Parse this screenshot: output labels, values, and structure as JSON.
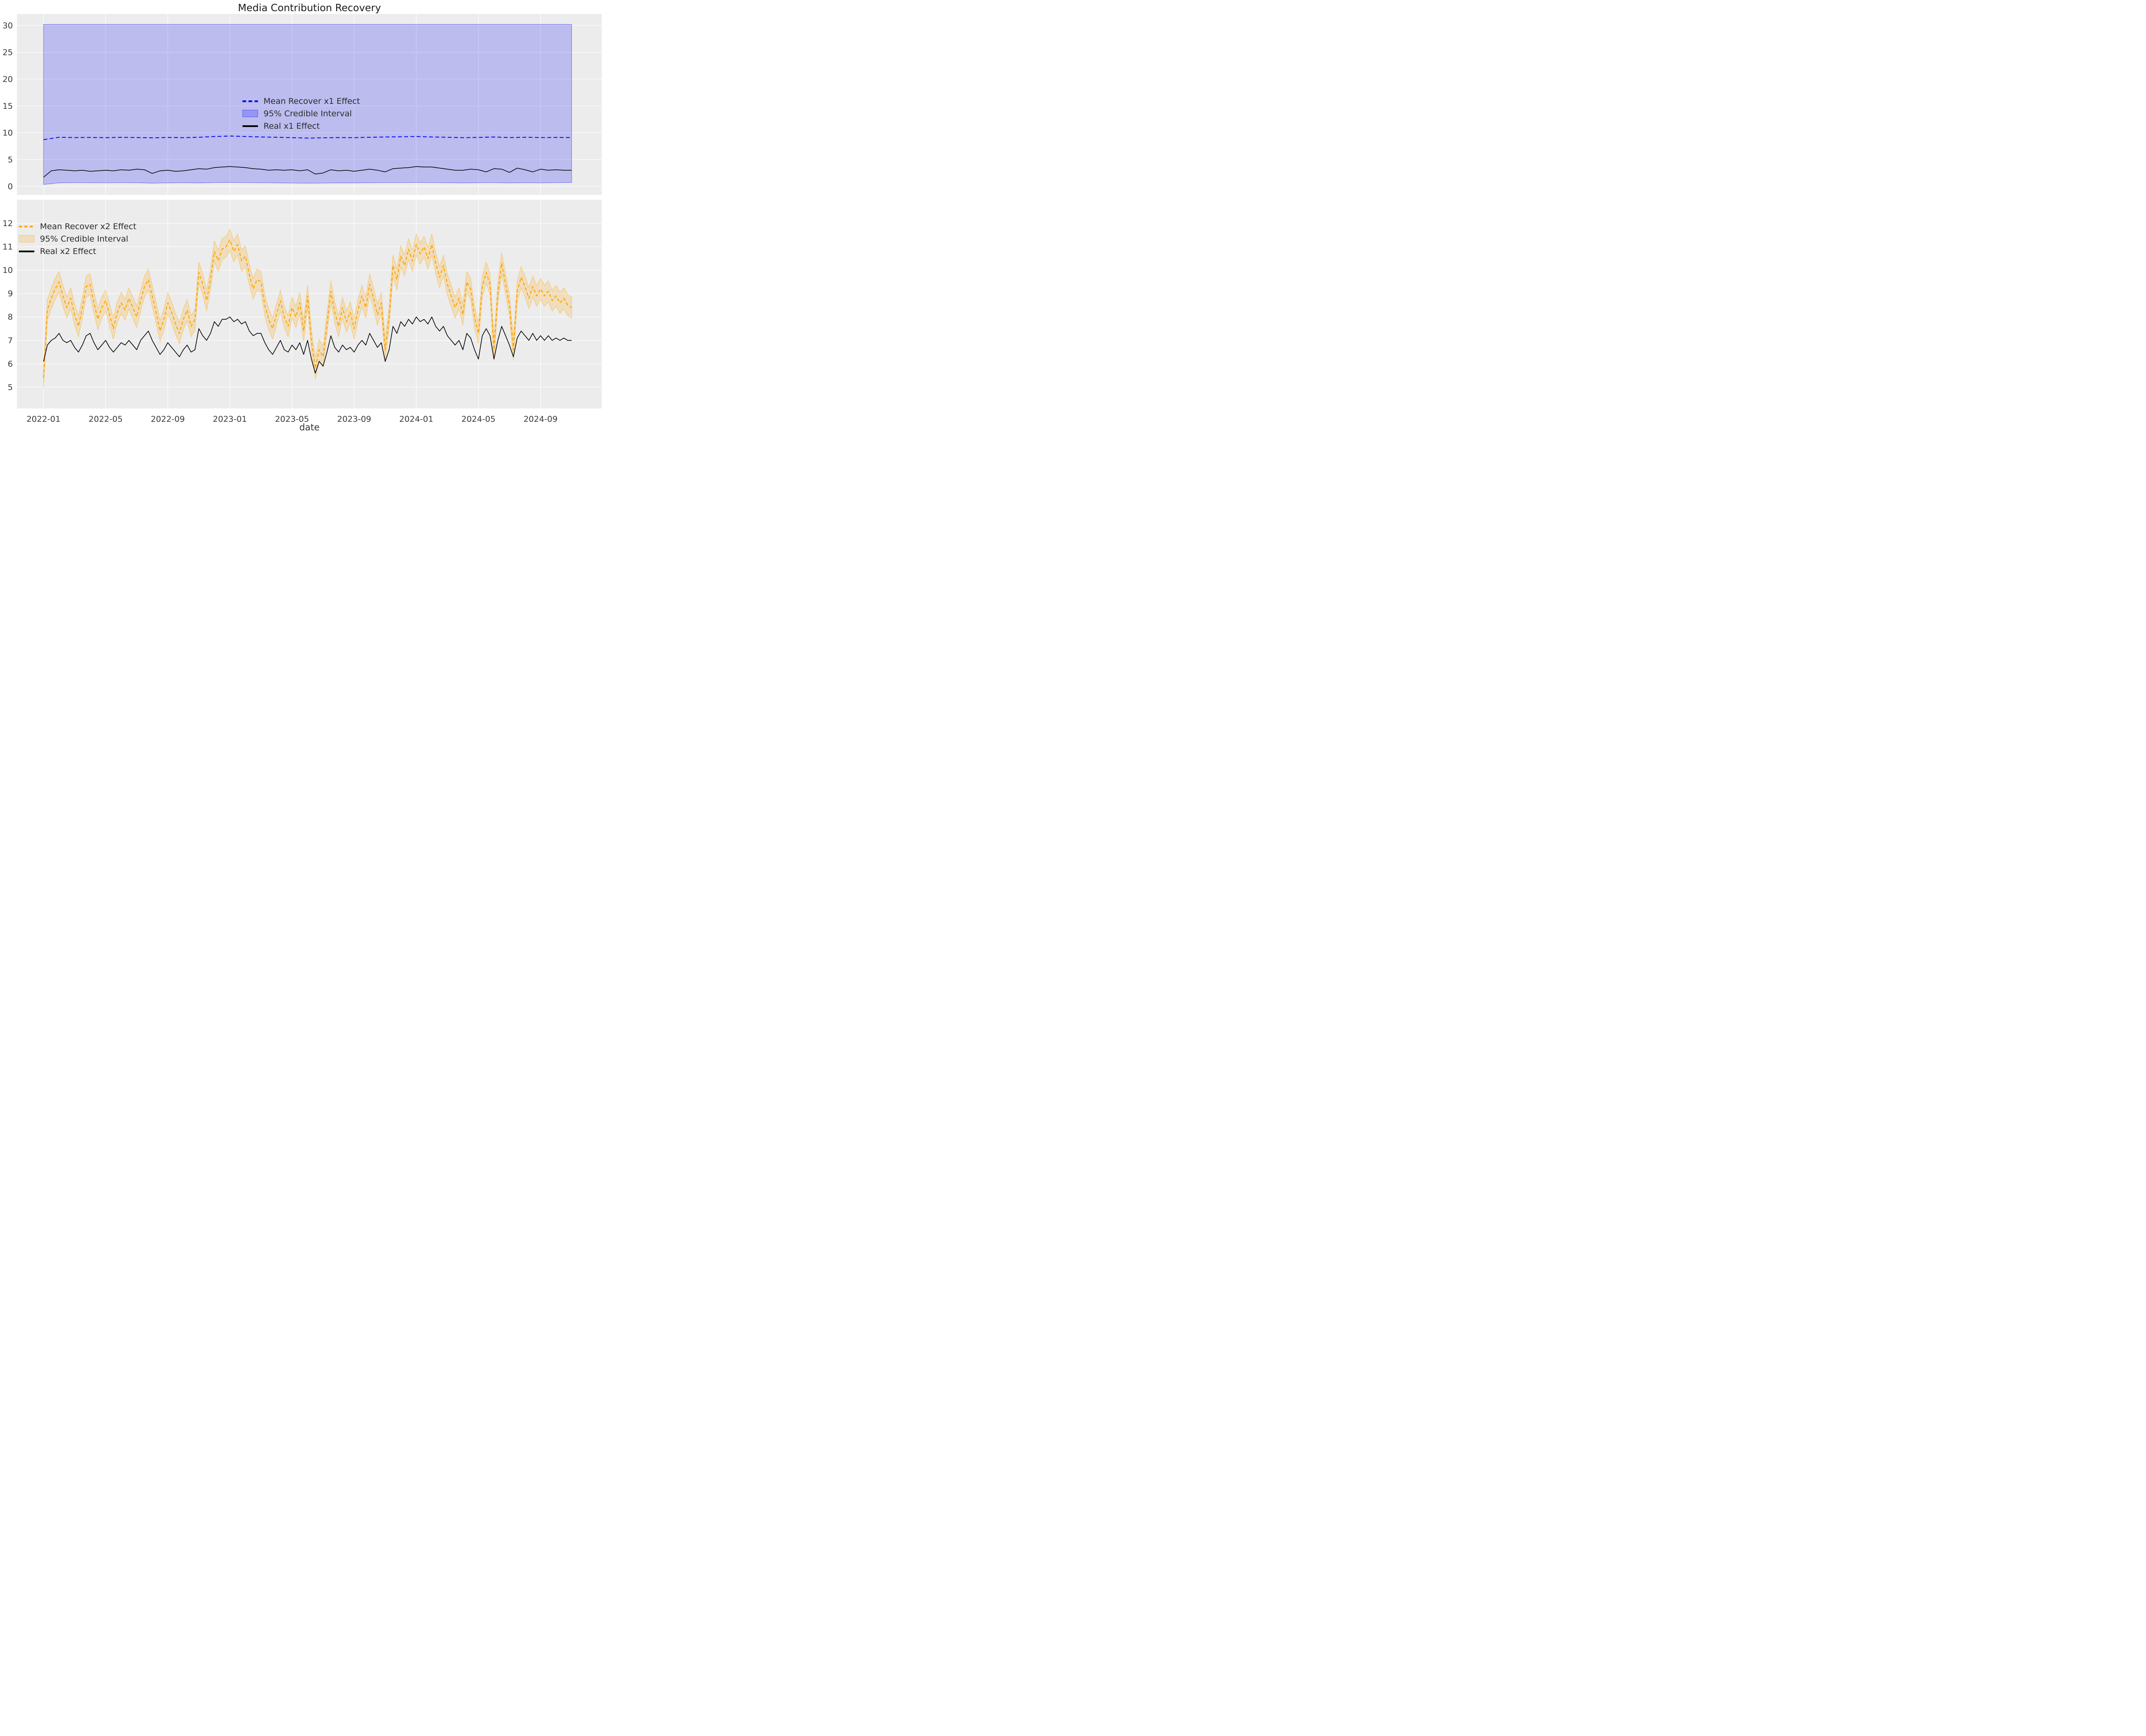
{
  "figure": {
    "background_color": "#ffffff",
    "axes_background_color": "#ececec",
    "grid_color": "#ffffff",
    "tick_label_color": "#3a3a3a",
    "title_color": "#1a1a1a"
  },
  "chart_data": {
    "type": "line",
    "title": "Media Contribution Recovery",
    "xlabel": "date",
    "x_axis": {
      "unit": "months since 2022-01",
      "tick_labels": [
        "2022-01",
        "2022-05",
        "2022-09",
        "2023-01",
        "2023-05",
        "2023-09",
        "2024-01",
        "2024-05",
        "2024-09"
      ],
      "tick_months": [
        0,
        4,
        8,
        12,
        16,
        20,
        24,
        28,
        32
      ],
      "data_start_month": 0,
      "data_end_month": 34,
      "xlim_months": [
        -1.71,
        35.94
      ]
    },
    "grid": true,
    "subplots": [
      {
        "name": "x1",
        "ylim": [
          -1.6,
          32.15
        ],
        "yticks": [
          0,
          5,
          10,
          15,
          20,
          25,
          30
        ],
        "legend_position": "center",
        "legend_items": [
          {
            "label": "Mean Recover x1 Effect",
            "swatch": "dashed-line"
          },
          {
            "label": "95% Credible Interval",
            "swatch": "patch"
          },
          {
            "label": "Real x1 Effect",
            "swatch": "solid-line"
          }
        ],
        "colors": {
          "mean": "#0000ff",
          "band_fill": "rgba(0,0,255,0.2)",
          "band_edge": "rgba(0,0,255,0.4)",
          "real": "#000000"
        },
        "ci_high_const": 30.2,
        "ci_low": {
          "x_start": 0,
          "x_step_months": 1,
          "values": [
            0.35,
            0.65,
            0.7,
            0.68,
            0.66,
            0.7,
            0.68,
            0.6,
            0.65,
            0.68,
            0.65,
            0.7,
            0.72,
            0.7,
            0.68,
            0.65,
            0.62,
            0.6,
            0.62,
            0.65,
            0.65,
            0.68,
            0.7,
            0.7,
            0.72,
            0.7,
            0.68,
            0.65,
            0.68,
            0.7,
            0.65,
            0.68,
            0.66,
            0.7,
            0.72
          ]
        },
        "mean": {
          "x_start": 0,
          "x_step_months": 1,
          "values": [
            8.7,
            9.15,
            9.1,
            9.12,
            9.08,
            9.14,
            9.1,
            9.05,
            9.12,
            9.08,
            9.15,
            9.3,
            9.38,
            9.3,
            9.2,
            9.15,
            9.08,
            9.0,
            9.05,
            9.1,
            9.08,
            9.15,
            9.2,
            9.25,
            9.3,
            9.2,
            9.15,
            9.08,
            9.12,
            9.2,
            9.1,
            9.15,
            9.1,
            9.12,
            9.1
          ]
        },
        "real": {
          "x_start": 0,
          "x_step_months": 0.5,
          "values": [
            1.7,
            2.9,
            3.1,
            3.0,
            2.9,
            3.0,
            2.8,
            2.9,
            3.0,
            2.9,
            3.1,
            3.0,
            3.2,
            3.1,
            2.4,
            2.9,
            3.0,
            2.8,
            2.9,
            3.1,
            3.3,
            3.2,
            3.5,
            3.6,
            3.7,
            3.6,
            3.5,
            3.3,
            3.2,
            3.0,
            3.1,
            3.0,
            3.1,
            2.9,
            3.1,
            2.3,
            2.5,
            3.1,
            2.9,
            3.0,
            2.8,
            3.0,
            3.2,
            3.0,
            2.7,
            3.3,
            3.4,
            3.5,
            3.7,
            3.6,
            3.6,
            3.4,
            3.2,
            3.0,
            3.0,
            3.2,
            3.1,
            2.7,
            3.3,
            3.2,
            2.6,
            3.4,
            3.1,
            2.7,
            3.2,
            3.0,
            3.1,
            3.0,
            3.0
          ]
        }
      },
      {
        "name": "x2",
        "ylim": [
          4.09,
          13.01
        ],
        "yticks": [
          5,
          6,
          7,
          8,
          9,
          10,
          11,
          12
        ],
        "legend_position": "upper left",
        "legend_items": [
          {
            "label": "Mean Recover x2 Effect",
            "swatch": "dashed-line"
          },
          {
            "label": "95% Credible Interval",
            "swatch": "patch"
          },
          {
            "label": "Real x2 Effect",
            "swatch": "solid-line"
          }
        ],
        "colors": {
          "mean": "#ffa500",
          "band_fill": "rgba(255,165,0,0.2)",
          "band_edge": "rgba(255,165,0,0.4)",
          "real": "#000000"
        },
        "ci_half_width": 0.45,
        "mean": {
          "x_start": 0,
          "x_step_months": 0.25,
          "values": [
            5.4,
            8.3,
            8.8,
            9.2,
            9.5,
            8.9,
            8.4,
            8.8,
            8.1,
            7.6,
            8.4,
            9.3,
            9.4,
            8.6,
            7.9,
            8.4,
            8.7,
            8.1,
            7.5,
            8.2,
            8.6,
            8.3,
            8.8,
            8.4,
            8.0,
            8.7,
            9.3,
            9.6,
            8.9,
            8.2,
            7.4,
            7.9,
            8.6,
            8.2,
            7.7,
            7.3,
            7.9,
            8.3,
            7.6,
            7.9,
            9.9,
            9.4,
            8.7,
            9.6,
            10.8,
            10.4,
            10.9,
            11.0,
            11.3,
            10.8,
            11.1,
            10.4,
            10.6,
            9.8,
            9.2,
            9.6,
            9.5,
            8.5,
            7.9,
            7.5,
            8.1,
            8.7,
            8.0,
            7.6,
            8.4,
            8.0,
            8.6,
            7.4,
            8.9,
            7.0,
            5.8,
            6.6,
            6.3,
            7.7,
            9.1,
            8.2,
            7.6,
            8.4,
            7.8,
            8.2,
            7.5,
            8.3,
            8.9,
            8.4,
            9.4,
            8.8,
            8.1,
            8.6,
            6.6,
            8.0,
            10.2,
            9.6,
            10.6,
            10.2,
            10.9,
            10.4,
            11.1,
            10.7,
            11.0,
            10.5,
            11.1,
            10.3,
            9.7,
            10.2,
            9.4,
            8.9,
            8.4,
            8.8,
            8.1,
            9.5,
            9.2,
            8.0,
            7.3,
            9.3,
            9.9,
            9.4,
            6.6,
            9.0,
            10.3,
            9.4,
            8.5,
            6.6,
            9.1,
            9.7,
            9.3,
            8.8,
            9.3,
            8.9,
            9.2,
            8.9,
            9.1,
            8.7,
            8.9,
            8.6,
            8.8,
            8.5,
            8.4
          ]
        },
        "real": {
          "x_start": 0,
          "x_step_months": 0.25,
          "values": [
            6.1,
            6.8,
            7.0,
            7.1,
            7.3,
            7.0,
            6.9,
            7.0,
            6.7,
            6.5,
            6.8,
            7.2,
            7.3,
            6.9,
            6.6,
            6.8,
            7.0,
            6.7,
            6.5,
            6.7,
            6.9,
            6.8,
            7.0,
            6.8,
            6.6,
            7.0,
            7.2,
            7.4,
            7.0,
            6.7,
            6.4,
            6.6,
            6.9,
            6.7,
            6.5,
            6.3,
            6.6,
            6.8,
            6.5,
            6.6,
            7.5,
            7.2,
            7.0,
            7.3,
            7.8,
            7.6,
            7.9,
            7.9,
            8.0,
            7.8,
            7.9,
            7.7,
            7.8,
            7.4,
            7.2,
            7.3,
            7.3,
            6.9,
            6.6,
            6.4,
            6.7,
            7.0,
            6.6,
            6.5,
            6.8,
            6.6,
            6.9,
            6.4,
            7.0,
            6.2,
            5.6,
            6.1,
            5.9,
            6.5,
            7.2,
            6.7,
            6.5,
            6.8,
            6.6,
            6.7,
            6.5,
            6.8,
            7.0,
            6.8,
            7.3,
            7.0,
            6.7,
            6.9,
            6.1,
            6.6,
            7.6,
            7.3,
            7.8,
            7.6,
            7.9,
            7.7,
            8.0,
            7.8,
            7.9,
            7.7,
            8.0,
            7.6,
            7.4,
            7.6,
            7.2,
            7.0,
            6.8,
            7.0,
            6.6,
            7.3,
            7.1,
            6.6,
            6.2,
            7.2,
            7.5,
            7.2,
            6.2,
            7.0,
            7.6,
            7.2,
            6.8,
            6.3,
            7.1,
            7.4,
            7.2,
            7.0,
            7.3,
            7.0,
            7.2,
            7.0,
            7.2,
            7.0,
            7.1,
            7.0,
            7.1,
            7.0,
            7.0
          ]
        }
      }
    ]
  }
}
